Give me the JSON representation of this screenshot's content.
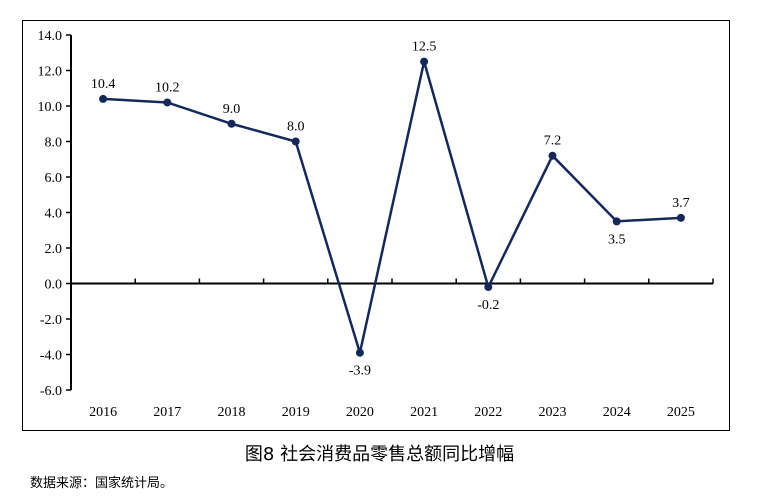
{
  "chart_data": {
    "type": "line",
    "title": "图8  社会消费品零售总额同比增幅",
    "categories": [
      "2016",
      "2017",
      "2018",
      "2019",
      "2020",
      "2021",
      "2022",
      "2023",
      "2024",
      "2025"
    ],
    "series": [
      {
        "values": [
          10.4,
          10.2,
          9.0,
          8.0,
          -3.9,
          12.5,
          -0.2,
          7.2,
          3.5,
          3.7
        ]
      }
    ],
    "data_labels": [
      "10.4",
      "10.2",
      "9.0",
      "8.0",
      "-3.9",
      "12.5",
      "-0.2",
      "7.2",
      "3.5",
      "3.7"
    ],
    "ylim": [
      -6,
      14
    ],
    "yticks": [
      "14.0",
      "12.0",
      "10.0",
      "8.0",
      "6.0",
      "4.0",
      "2.0",
      "0.0",
      "-2.0",
      "-4.0",
      "-6.0"
    ],
    "xlabel": "",
    "ylabel": "",
    "grid": false,
    "line_color": "#14285a"
  },
  "source": "数据来源：国家统计局。"
}
